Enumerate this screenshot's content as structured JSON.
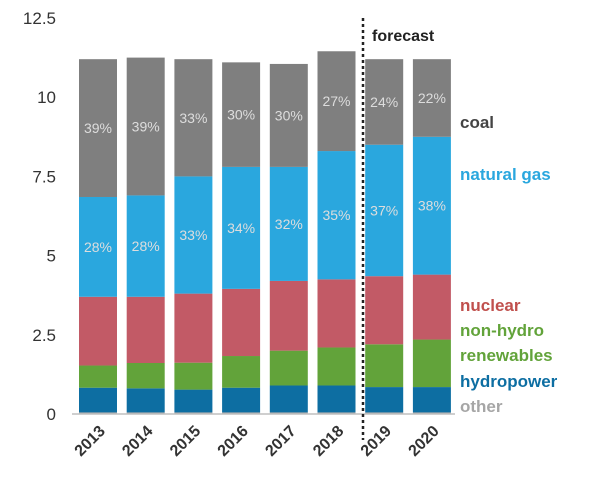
{
  "chart_data": {
    "type": "bar",
    "stacked": true,
    "categories": [
      "2013",
      "2014",
      "2015",
      "2016",
      "2017",
      "2018",
      "2019",
      "2020"
    ],
    "ylim": [
      0,
      12.5
    ],
    "yticks": [
      "0",
      "2.5",
      "5",
      "7.5",
      "10",
      "12.5"
    ],
    "grid": false,
    "annotation": "forecast",
    "series": [
      {
        "name": "other",
        "color": "#a6a6a6",
        "values": [
          0.05,
          0.05,
          0.05,
          0.05,
          0.05,
          0.05,
          0.05,
          0.05
        ]
      },
      {
        "name": "hydropower",
        "color": "#0d6ea2",
        "values": [
          0.78,
          0.76,
          0.72,
          0.78,
          0.85,
          0.85,
          0.8,
          0.8
        ]
      },
      {
        "name": "renewables",
        "color": "#62a33a",
        "values": [
          0.7,
          0.8,
          0.85,
          1.0,
          1.1,
          1.2,
          1.35,
          1.5
        ]
      },
      {
        "name": "nuclear",
        "color": "#c25a66",
        "values": [
          2.17,
          2.09,
          2.18,
          2.12,
          2.2,
          2.15,
          2.15,
          2.05
        ]
      },
      {
        "name": "natural gas",
        "color": "#2aa7de",
        "values": [
          3.15,
          3.2,
          3.7,
          3.85,
          3.6,
          4.05,
          4.15,
          4.35
        ]
      },
      {
        "name": "coal",
        "color": "#7f7f7f",
        "values": [
          4.35,
          4.35,
          3.7,
          3.3,
          3.25,
          3.15,
          2.7,
          2.45
        ]
      }
    ],
    "labels": {
      "natural gas": [
        "28%",
        "28%",
        "33%",
        "34%",
        "32%",
        "35%",
        "37%",
        "38%"
      ],
      "coal": [
        "39%",
        "39%",
        "33%",
        "30%",
        "30%",
        "27%",
        "24%",
        "22%"
      ]
    },
    "legend": [
      {
        "text": "coal",
        "color": "#444444"
      },
      {
        "text": "natural gas",
        "color": "#2aa7de"
      },
      {
        "text": "nuclear",
        "color": "#c0504d"
      },
      {
        "text": "non-hydro",
        "color": "#62a33a"
      },
      {
        "text": "renewables",
        "color": "#62a33a"
      },
      {
        "text": "hydropower",
        "color": "#0d6ea2"
      },
      {
        "text": "other",
        "color": "#a6a6a6"
      }
    ]
  }
}
